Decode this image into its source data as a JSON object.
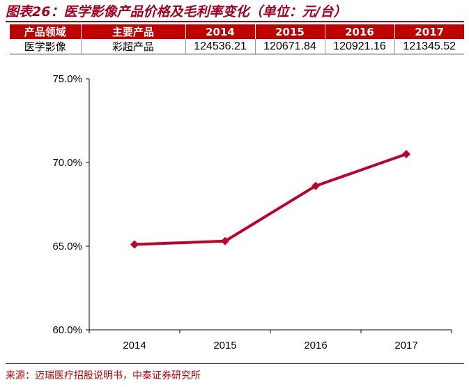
{
  "title": "图表26：医学影像产品价格及毛利率变化（单位：元/台）",
  "table": {
    "headers": [
      "产品领域",
      "主要产品",
      "2014",
      "2015",
      "2016",
      "2017"
    ],
    "row": [
      "医学影像",
      "彩超产品",
      "124536.21",
      "120671.84",
      "120921.16",
      "121345.52"
    ]
  },
  "chart_data": {
    "type": "line",
    "x": [
      "2014",
      "2015",
      "2016",
      "2017"
    ],
    "series": [
      {
        "values": [
          65.1,
          65.3,
          68.6,
          70.5
        ],
        "color": "#c0002a",
        "marker": "diamond"
      }
    ],
    "ylim": [
      60.0,
      75.0
    ],
    "yticks": [
      "60.0%",
      "65.0%",
      "70.0%",
      "75.0%"
    ],
    "ytick_values": [
      60,
      65,
      70,
      75
    ],
    "grid": false
  },
  "source": "来源：迈瑞医疗招股说明书，中泰证券研究所"
}
